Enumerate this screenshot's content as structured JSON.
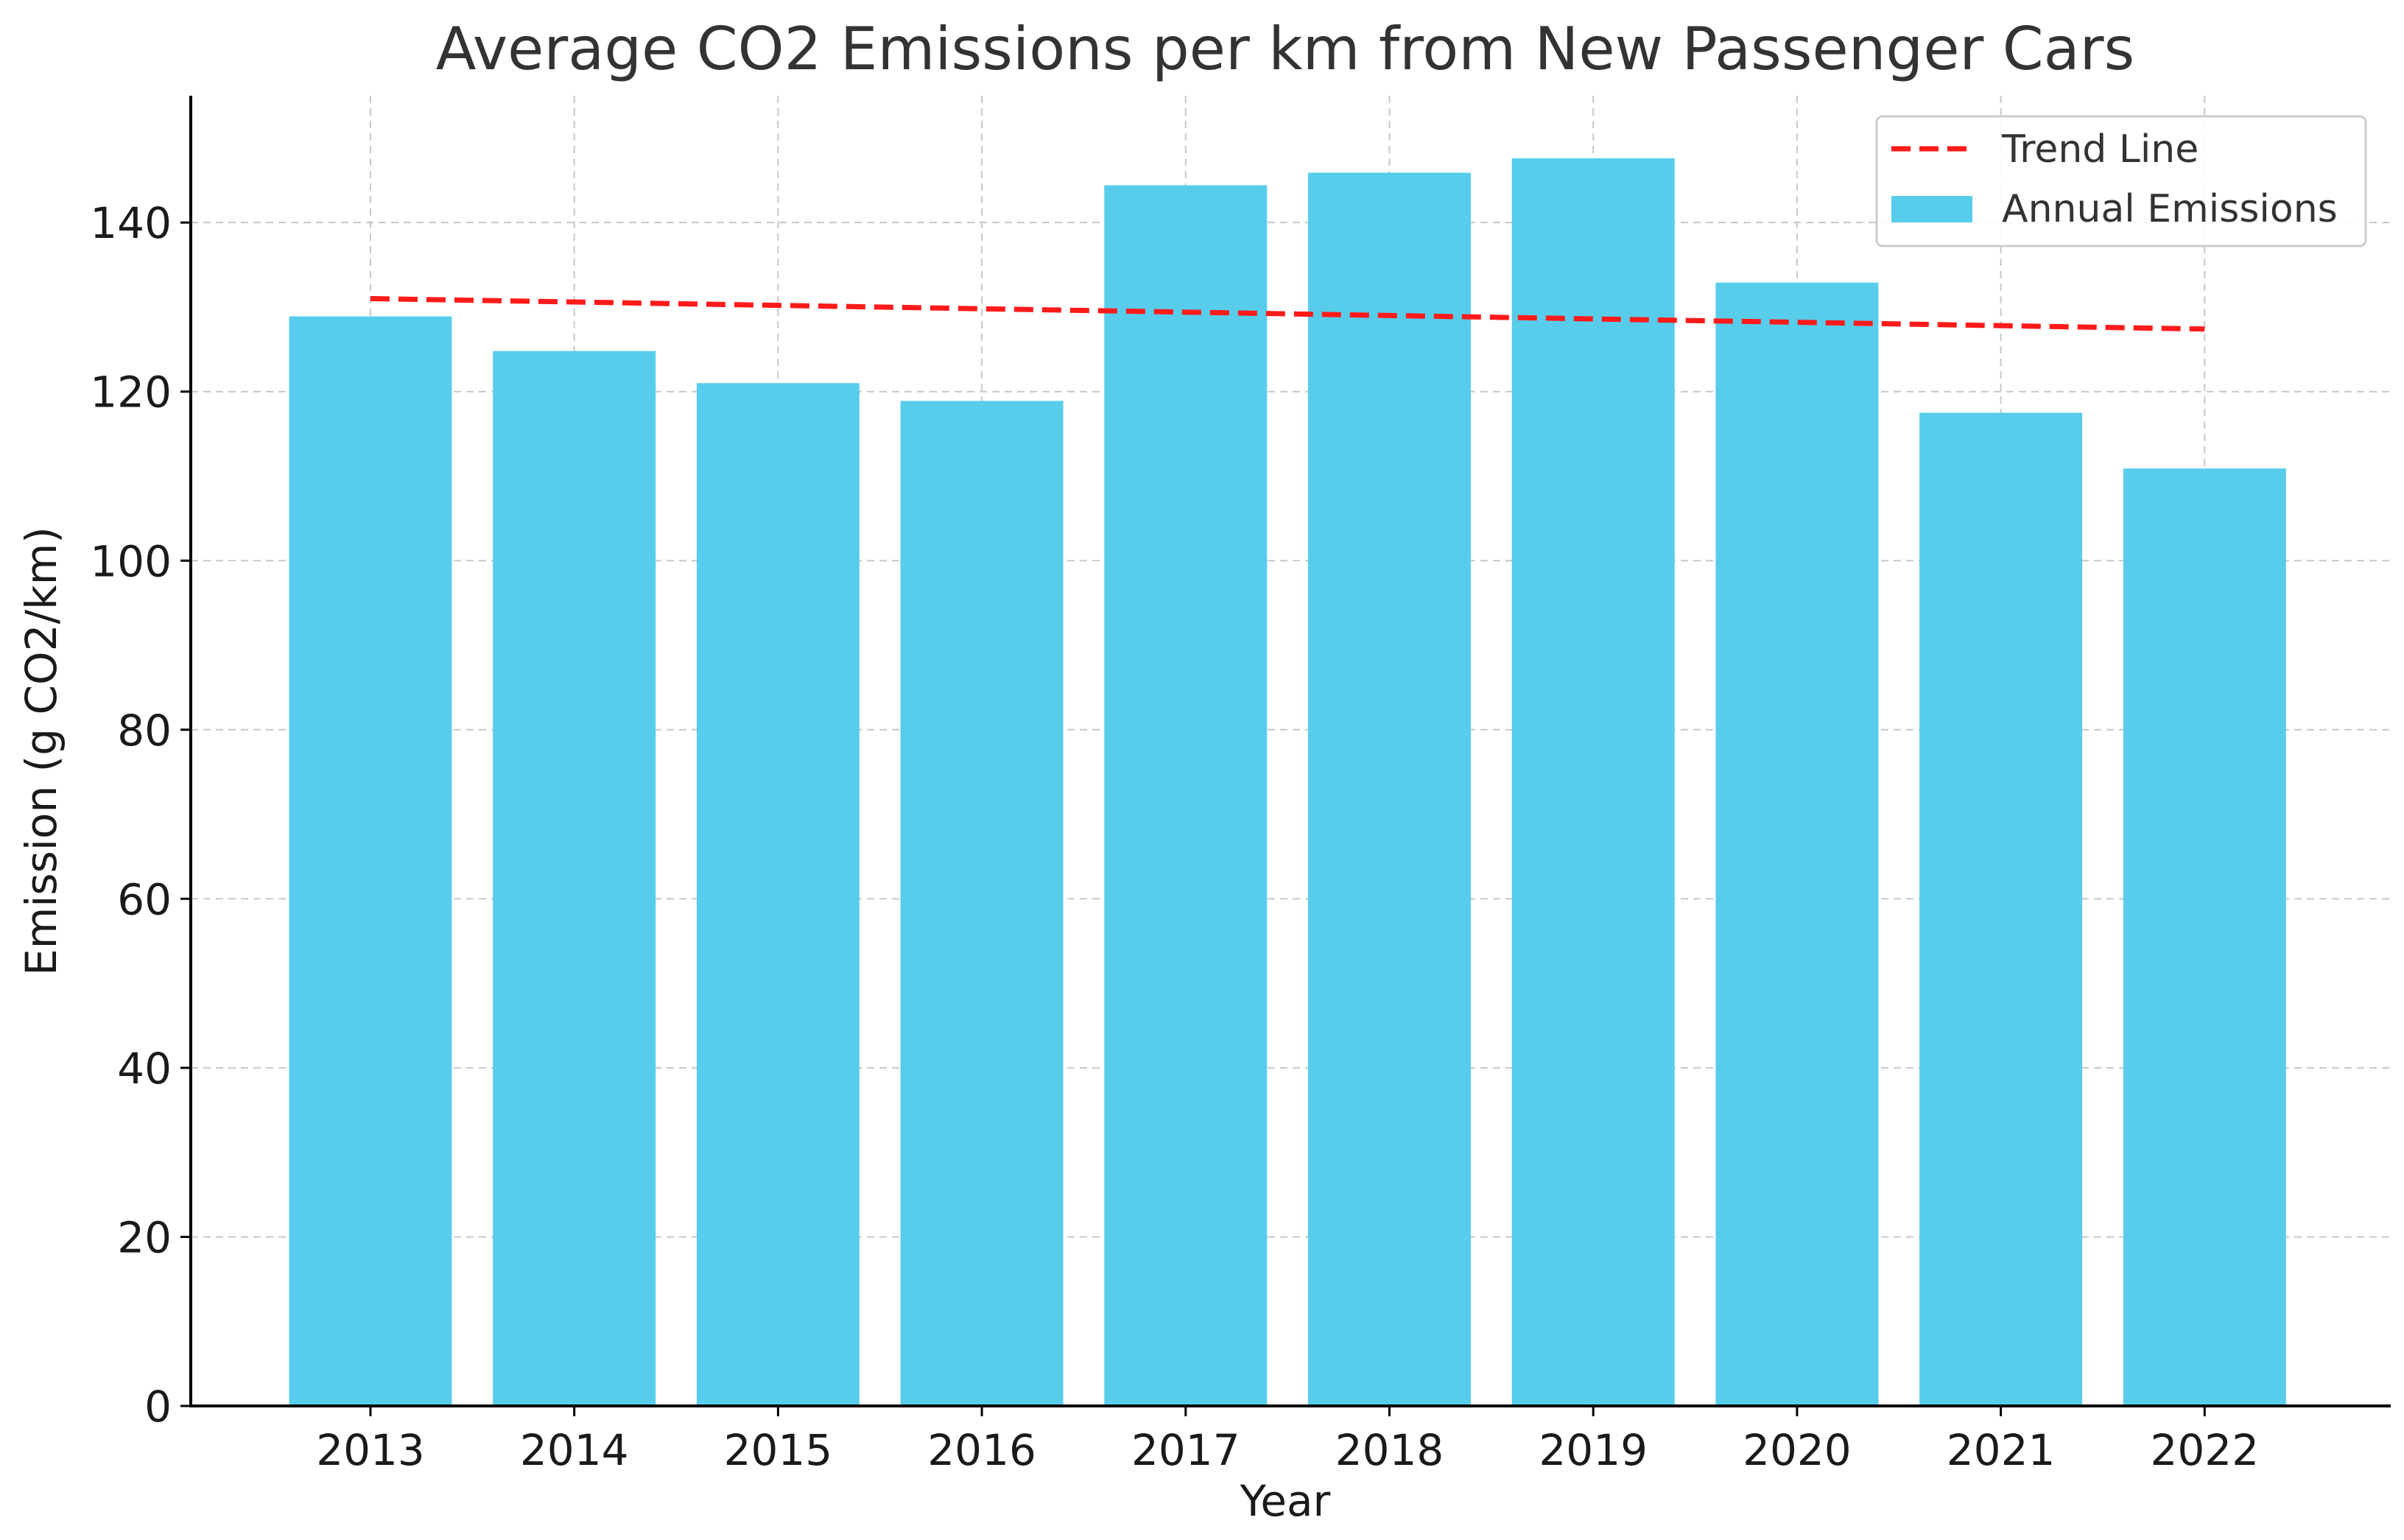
{
  "chart_data": {
    "type": "bar",
    "title": "Average CO2 Emissions per km from New Passenger Cars",
    "xlabel": "Year",
    "ylabel": "Emission (g CO2/km)",
    "categories": [
      "2013",
      "2014",
      "2015",
      "2016",
      "2017",
      "2018",
      "2019",
      "2020",
      "2021",
      "2022"
    ],
    "series": [
      {
        "name": "Annual Emissions",
        "type": "bar",
        "values": [
          128.9,
          124.8,
          121.0,
          118.9,
          144.4,
          145.9,
          147.6,
          132.9,
          117.5,
          110.9
        ],
        "color": "#57cdeb"
      },
      {
        "name": "Trend Line",
        "type": "line",
        "style": "dashed",
        "values": [
          131.0,
          130.6,
          130.2,
          129.8,
          129.4,
          129.0,
          128.6,
          128.2,
          127.8,
          127.4
        ],
        "color": "#ff1a1a"
      }
    ],
    "ylim": [
      0,
      155
    ],
    "yticks": [
      0,
      20,
      40,
      60,
      80,
      100,
      120,
      140
    ],
    "grid": true,
    "legend": {
      "position": "top-right",
      "entries": [
        "Trend Line",
        "Annual Emissions"
      ]
    }
  }
}
